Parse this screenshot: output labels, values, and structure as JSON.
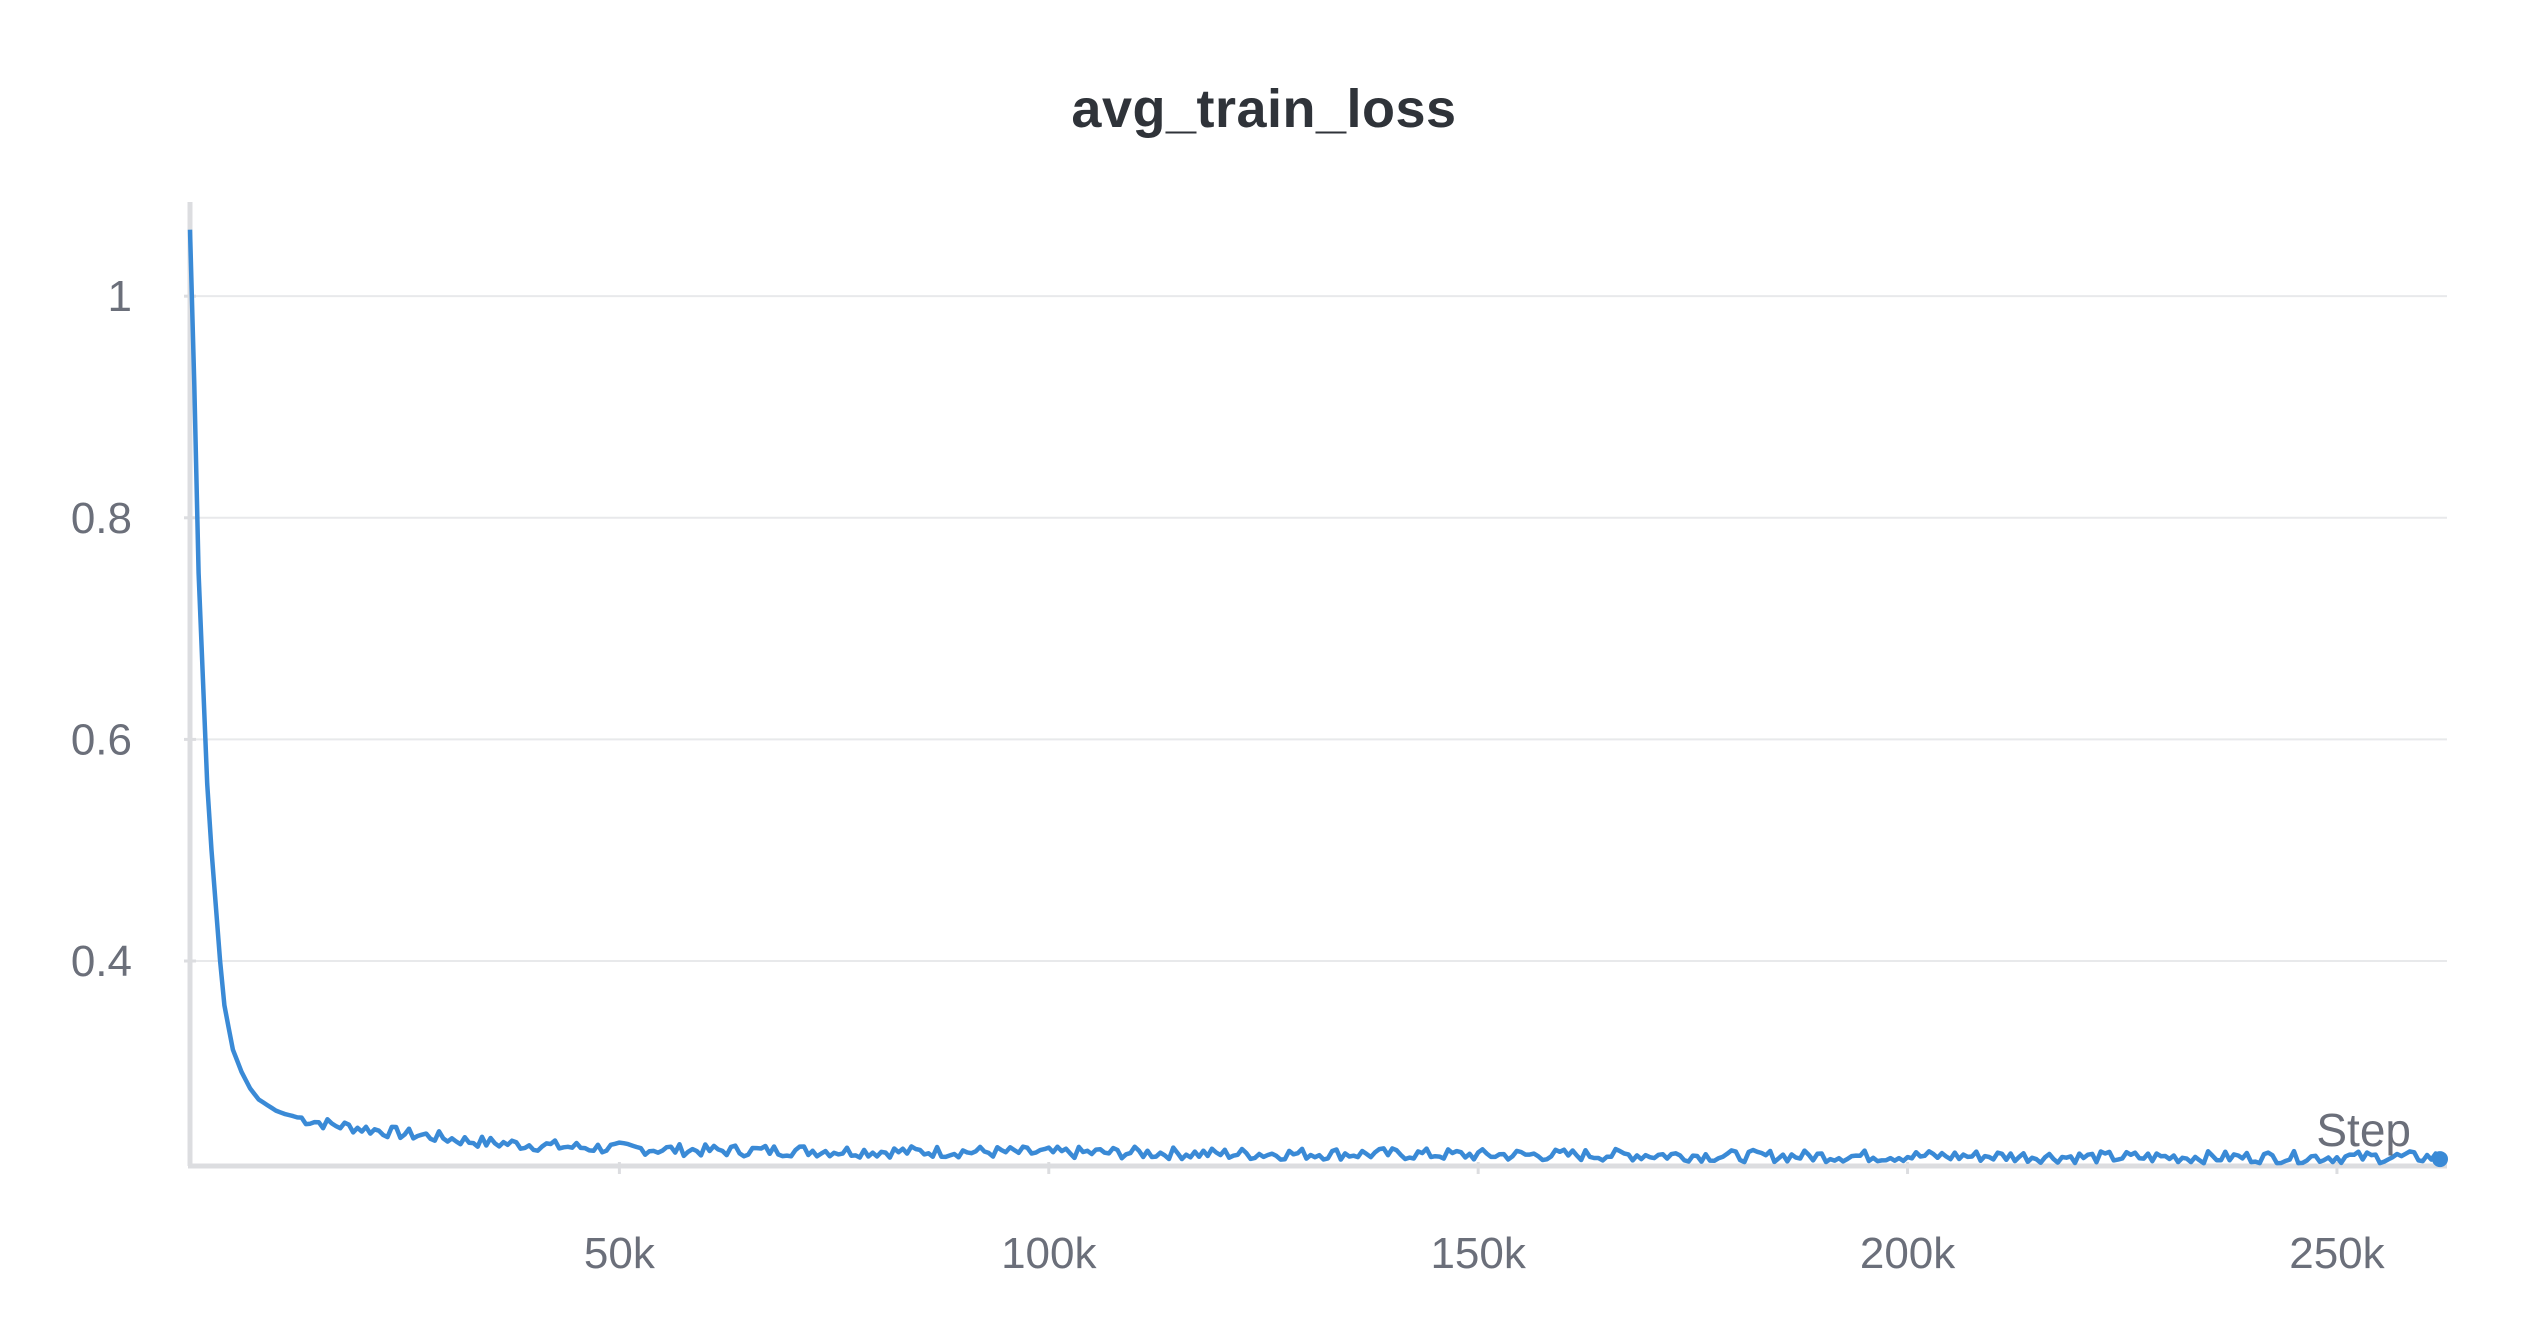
{
  "chart_data": {
    "type": "line",
    "title": "avg_train_loss",
    "xlabel": "Step",
    "ylabel": "",
    "xlim": [
      0,
      262000
    ],
    "ylim": [
      0.215,
      1.085
    ],
    "x_ticks": [
      50000,
      100000,
      150000,
      200000,
      250000
    ],
    "x_tick_labels": [
      "50k",
      "100k",
      "150k",
      "200k",
      "250k"
    ],
    "y_ticks": [
      0.4,
      0.6,
      0.8,
      1.0
    ],
    "y_tick_labels": [
      "0.4",
      "0.6",
      "0.8",
      "1"
    ],
    "grid": true,
    "legend": "none",
    "line_color": "#3a8ad6",
    "series": [
      {
        "x": [
          0,
          500,
          1000,
          2000,
          2500,
          3000,
          3500,
          4000,
          5000,
          6000,
          7000,
          8000,
          9000,
          10000,
          11000,
          12000,
          14000,
          16000,
          18000,
          20000,
          22000,
          25000,
          28000,
          30000,
          32000,
          35000,
          40000,
          45000,
          50000,
          55000,
          60000,
          70000,
          80000,
          90000,
          100000,
          110000,
          120000,
          130000,
          140000,
          150000,
          160000,
          170000,
          180000,
          190000,
          200000,
          210000,
          220000,
          230000,
          240000,
          250000,
          260000,
          262000
        ],
        "values": [
          1.06,
          0.92,
          0.75,
          0.56,
          0.5,
          0.45,
          0.4,
          0.36,
          0.32,
          0.3,
          0.285,
          0.275,
          0.27,
          0.265,
          0.262,
          0.26,
          0.256,
          0.253,
          0.251,
          0.249,
          0.247,
          0.244,
          0.242,
          0.24,
          0.238,
          0.236,
          0.234,
          0.232,
          0.231,
          0.23,
          0.229,
          0.229,
          0.228,
          0.228,
          0.227,
          0.227,
          0.226,
          0.226,
          0.226,
          0.225,
          0.225,
          0.225,
          0.224,
          0.224,
          0.224,
          0.224,
          0.223,
          0.223,
          0.223,
          0.223,
          0.223,
          0.223
        ]
      }
    ]
  }
}
